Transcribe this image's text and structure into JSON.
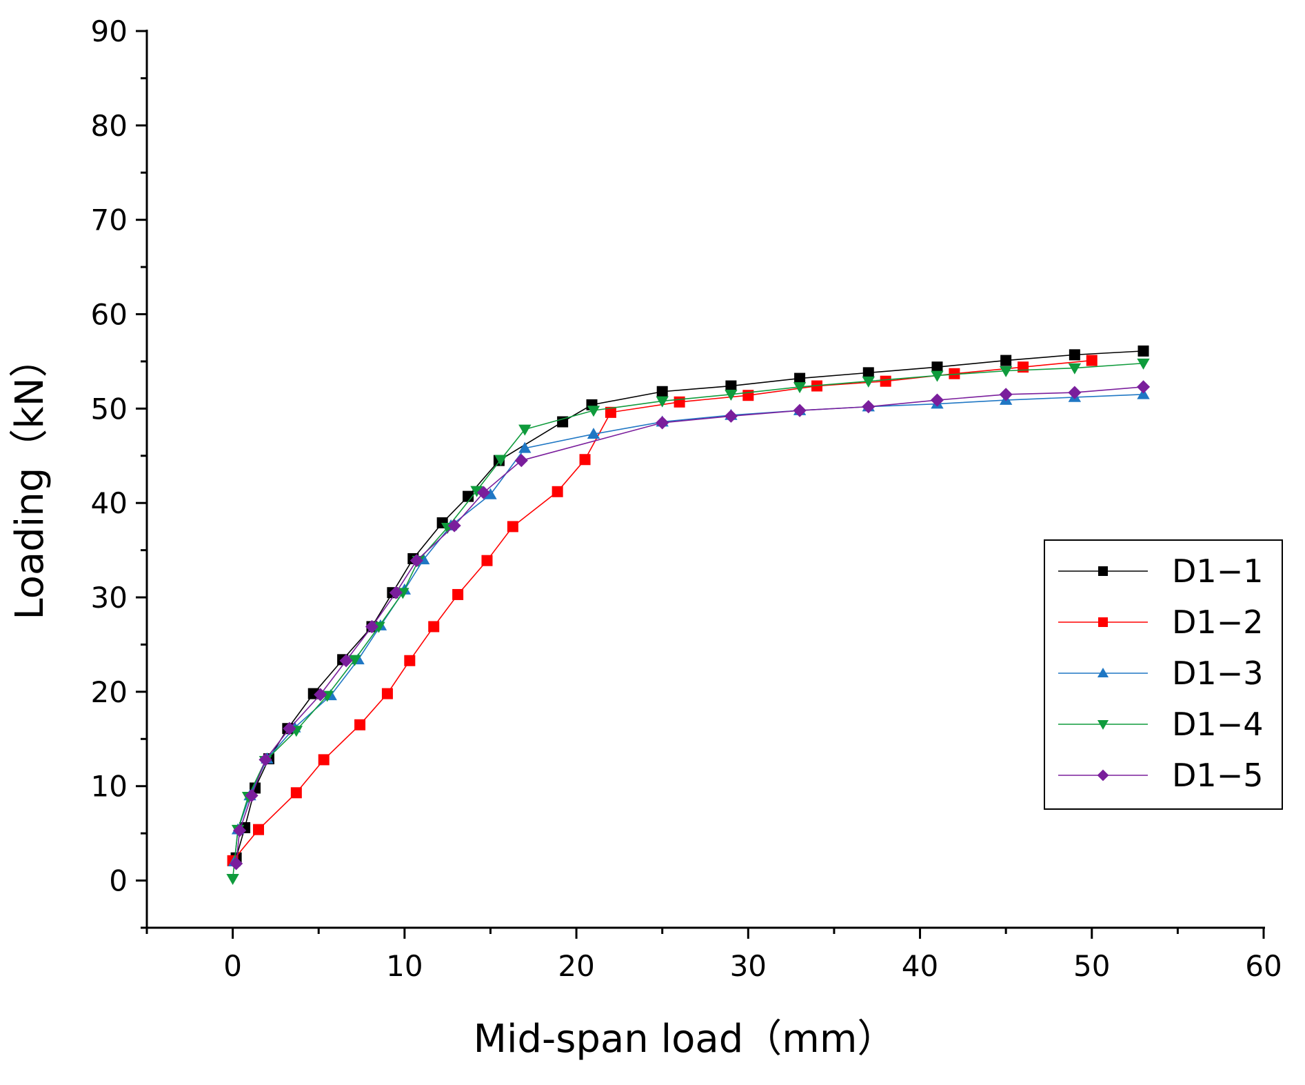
{
  "chart_data": {
    "type": "line",
    "xlabel": "Mid-span load（mm）",
    "ylabel": "Loading（kN）",
    "xlim": [
      -5,
      60
    ],
    "ylim": [
      -5,
      90
    ],
    "xticks": [
      0,
      10,
      20,
      30,
      40,
      50,
      60
    ],
    "yticks": [
      0,
      10,
      20,
      30,
      40,
      50,
      60,
      70,
      80,
      90
    ],
    "legend_position": "right",
    "series": [
      {
        "name": "D1−1",
        "color": "#000000",
        "marker": "square",
        "x": [
          0.2,
          0.7,
          1.3,
          2.1,
          3.2,
          4.7,
          6.4,
          8.1,
          9.3,
          10.5,
          12.2,
          13.7,
          15.5,
          19.2,
          20.9,
          25.0,
          29.0,
          33.0,
          37.0,
          41.0,
          45.0,
          49.0,
          53.0
        ],
        "y": [
          2.4,
          5.6,
          9.8,
          12.9,
          16.1,
          19.8,
          23.4,
          26.9,
          30.5,
          34.1,
          37.9,
          40.7,
          44.5,
          48.6,
          50.4,
          51.8,
          52.4,
          53.2,
          53.8,
          54.4,
          55.1,
          55.7,
          56.1
        ]
      },
      {
        "name": "D1−2",
        "color": "#ff0000",
        "marker": "square",
        "x": [
          0.0,
          1.5,
          3.7,
          5.3,
          7.4,
          9.0,
          10.3,
          11.7,
          13.1,
          14.8,
          16.3,
          18.9,
          20.5,
          22.0,
          26.0,
          30.0,
          34.0,
          38.0,
          42.0,
          46.0,
          50.0
        ],
        "y": [
          2.1,
          5.4,
          9.3,
          12.8,
          16.5,
          19.8,
          23.3,
          26.9,
          30.3,
          33.9,
          37.5,
          41.2,
          44.6,
          49.6,
          50.7,
          51.4,
          52.4,
          52.9,
          53.7,
          54.4,
          55.1
        ]
      },
      {
        "name": "D1−3",
        "color": "#1f77c4",
        "marker": "triangle-up",
        "x": [
          0.1,
          0.3,
          1.0,
          2.0,
          3.6,
          5.7,
          7.3,
          8.6,
          10.0,
          11.1,
          12.7,
          15.0,
          17.0,
          21.0,
          25.0,
          29.0,
          33.0,
          37.0,
          41.0,
          45.0,
          49.0,
          53.0
        ],
        "y": [
          2.0,
          5.4,
          9.0,
          12.9,
          16.2,
          19.6,
          23.4,
          27.0,
          30.8,
          34.0,
          37.6,
          40.9,
          45.8,
          47.3,
          48.6,
          49.3,
          49.8,
          50.2,
          50.5,
          50.9,
          51.2,
          51.5
        ]
      },
      {
        "name": "D1−4",
        "color": "#0f9b3c",
        "marker": "triangle-down",
        "x": [
          0.0,
          0.3,
          0.9,
          1.9,
          3.7,
          5.5,
          7.1,
          8.5,
          9.9,
          10.8,
          12.5,
          14.2,
          15.6,
          17.0,
          21.0,
          25.0,
          29.0,
          33.0,
          37.0,
          41.0,
          45.0,
          49.0,
          53.0
        ],
        "y": [
          0.2,
          5.4,
          8.9,
          12.7,
          15.9,
          19.6,
          23.4,
          26.9,
          30.5,
          33.9,
          37.4,
          41.3,
          44.6,
          47.8,
          49.8,
          50.8,
          51.5,
          52.3,
          52.9,
          53.5,
          54.0,
          54.3,
          54.8
        ]
      },
      {
        "name": "D1−5",
        "color": "#7a1e9c",
        "marker": "diamond",
        "x": [
          0.2,
          0.4,
          1.1,
          1.9,
          3.3,
          5.1,
          6.6,
          8.1,
          9.5,
          10.7,
          12.9,
          14.6,
          16.8,
          25.0,
          29.0,
          33.0,
          37.0,
          41.0,
          45.0,
          49.0,
          53.0
        ],
        "y": [
          1.8,
          5.3,
          9.0,
          12.8,
          16.1,
          19.7,
          23.3,
          26.9,
          30.5,
          33.9,
          37.6,
          41.1,
          44.5,
          48.5,
          49.2,
          49.8,
          50.2,
          50.9,
          51.5,
          51.7,
          52.3
        ]
      }
    ]
  }
}
